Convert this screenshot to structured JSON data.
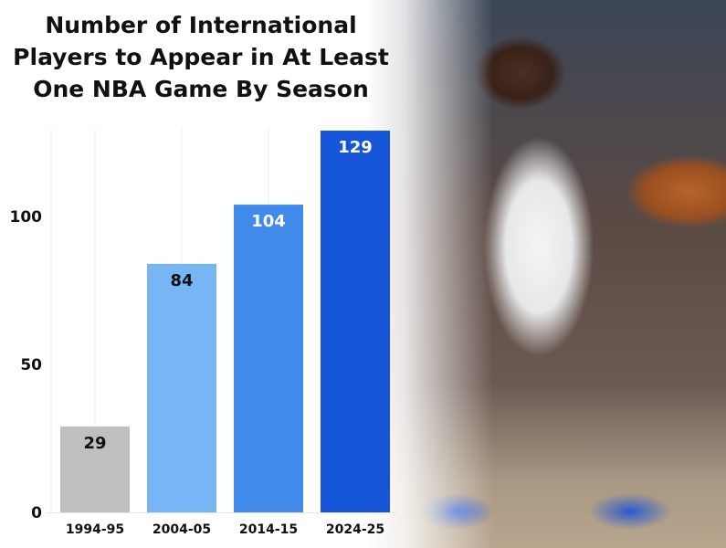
{
  "chart_data": {
    "type": "bar",
    "title": "Number of International Players to Appear in At Least One NBA Game By Season",
    "title_lines": [
      "Number of International",
      "Players to Appear in At Least",
      "One NBA Game By Season"
    ],
    "categories": [
      "1994-95",
      "2004-05",
      "2014-15",
      "2024-25"
    ],
    "values": [
      29,
      84,
      104,
      129
    ],
    "data_labels": [
      "29",
      "84",
      "104",
      "129"
    ],
    "bar_colors": [
      "#c0bfbe",
      "#77b6f5",
      "#418aea",
      "#1655d8"
    ],
    "label_colors": [
      "#111111",
      "#111111",
      "#ffffff",
      "#ffffff"
    ],
    "xlabel": "",
    "ylabel": "",
    "ylim": [
      0,
      130
    ],
    "yticks": [
      0,
      50,
      100
    ],
    "ytick_labels": [
      "0",
      "50",
      "100"
    ],
    "grid": "vertical"
  }
}
